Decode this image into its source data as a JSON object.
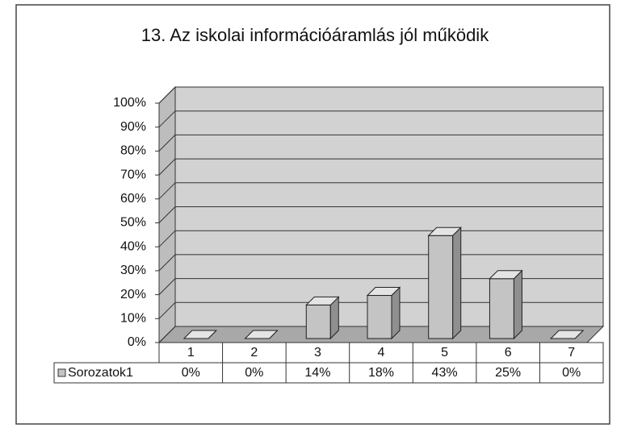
{
  "chart_data": {
    "type": "bar3d",
    "title": "13. Az iskolai információáramlás jól működik",
    "categories": [
      "1",
      "2",
      "3",
      "4",
      "5",
      "6",
      "7"
    ],
    "series": [
      {
        "name": "Sorozatok1",
        "color": "#c4c4c4",
        "values": [
          0,
          0,
          14,
          18,
          43,
          25,
          0
        ],
        "value_labels": [
          "0%",
          "0%",
          "14%",
          "18%",
          "43%",
          "25%",
          "0%"
        ]
      }
    ],
    "ylim": [
      0,
      100
    ],
    "yticks": [
      {
        "value": 0,
        "label": "0%"
      },
      {
        "value": 10,
        "label": "10%"
      },
      {
        "value": 20,
        "label": "20%"
      },
      {
        "value": 30,
        "label": "30%"
      },
      {
        "value": 40,
        "label": "40%"
      },
      {
        "value": 50,
        "label": "50%"
      },
      {
        "value": 60,
        "label": "60%"
      },
      {
        "value": 70,
        "label": "70%"
      },
      {
        "value": 80,
        "label": "80%"
      },
      {
        "value": 90,
        "label": "90%"
      },
      {
        "value": 100,
        "label": "100%"
      }
    ],
    "grid": true,
    "data_table": true
  }
}
